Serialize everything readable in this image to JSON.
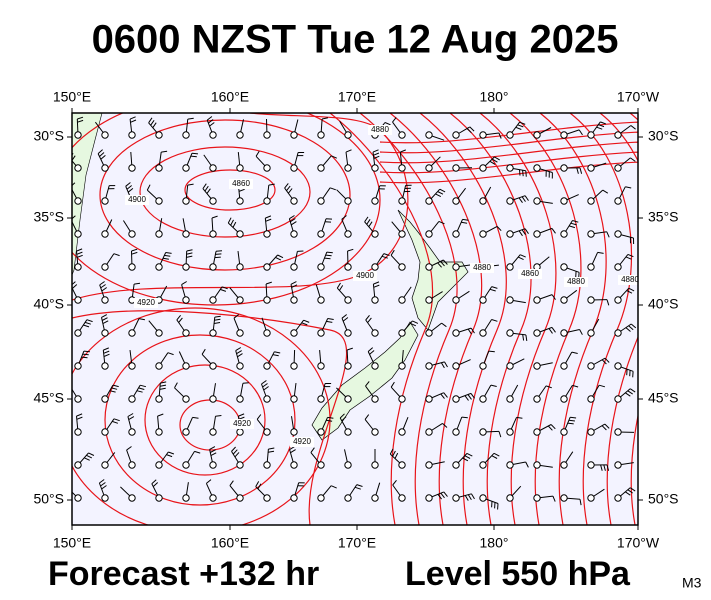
{
  "title": "0600 NZST Tue 12 Aug 2025",
  "footer": {
    "forecast": "Forecast +132 hr",
    "level": "Level 550 hPa",
    "code": "M3"
  },
  "map": {
    "lon_labels": [
      "150°E",
      "160°E",
      "170°E",
      "180°",
      "170°W"
    ],
    "lat_labels": [
      "30°S",
      "35°S",
      "40°S",
      "45°S",
      "50°S"
    ],
    "contour_labels": [
      "4860",
      "4880",
      "4900",
      "4920",
      "4900",
      "4880",
      "4860",
      "4880",
      "4920",
      "4920",
      "4880"
    ]
  }
}
